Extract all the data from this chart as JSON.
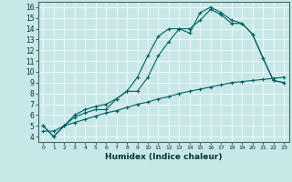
{
  "xlabel": "Humidex (Indice chaleur)",
  "bg_color": "#c8e8e8",
  "line_color": "#006060",
  "xlim": [
    -0.5,
    23.5
  ],
  "ylim": [
    3.5,
    16.5
  ],
  "xticks": [
    0,
    1,
    2,
    3,
    4,
    5,
    6,
    7,
    8,
    9,
    10,
    11,
    12,
    13,
    14,
    15,
    16,
    17,
    18,
    19,
    20,
    21,
    22,
    23
  ],
  "yticks": [
    4,
    5,
    6,
    7,
    8,
    9,
    10,
    11,
    12,
    13,
    14,
    15,
    16
  ],
  "line1_x": [
    0,
    1,
    2,
    3,
    4,
    5,
    6,
    7,
    8,
    9,
    10,
    11,
    12,
    13,
    14,
    15,
    16,
    17,
    18,
    19,
    20,
    21,
    22,
    23
  ],
  "line1_y": [
    5.0,
    4.0,
    5.0,
    6.0,
    6.5,
    6.8,
    7.0,
    7.5,
    8.2,
    9.5,
    11.5,
    13.3,
    14.0,
    14.0,
    13.6,
    15.5,
    16.0,
    15.5,
    14.8,
    14.5,
    13.5,
    11.3,
    9.2,
    9.0
  ],
  "line2_x": [
    0,
    1,
    2,
    3,
    4,
    5,
    6,
    7,
    8,
    9,
    10,
    11,
    12,
    13,
    14,
    15,
    16,
    17,
    18,
    19,
    20,
    21,
    22,
    23
  ],
  "line2_y": [
    5.0,
    4.0,
    5.0,
    5.8,
    6.2,
    6.5,
    6.5,
    7.5,
    8.2,
    8.2,
    9.5,
    11.5,
    12.8,
    14.0,
    14.0,
    14.8,
    15.8,
    15.3,
    14.5,
    14.5,
    13.5,
    11.3,
    9.2,
    9.0
  ],
  "line3_x": [
    0,
    1,
    2,
    3,
    4,
    5,
    6,
    7,
    8,
    9,
    10,
    11,
    12,
    13,
    14,
    15,
    16,
    17,
    18,
    19,
    20,
    21,
    22,
    23
  ],
  "line3_y": [
    4.5,
    4.5,
    5.0,
    5.3,
    5.6,
    5.9,
    6.2,
    6.4,
    6.7,
    7.0,
    7.2,
    7.5,
    7.7,
    8.0,
    8.2,
    8.4,
    8.6,
    8.8,
    9.0,
    9.1,
    9.2,
    9.3,
    9.4,
    9.5
  ],
  "grid_color": "#ffffff",
  "marker": "+"
}
